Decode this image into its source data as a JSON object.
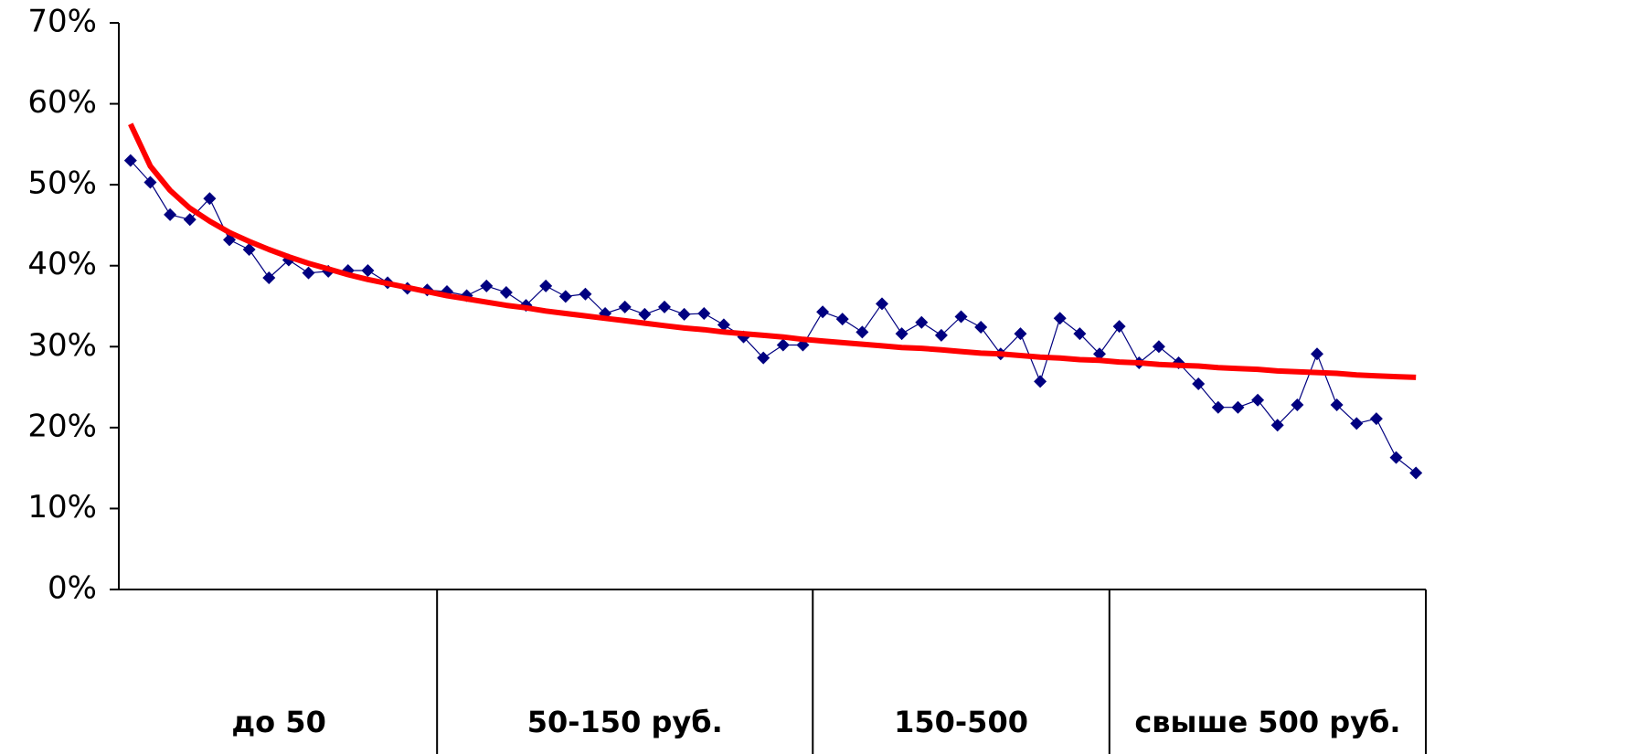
{
  "chart_data": {
    "type": "line",
    "categories": [
      null,
      null,
      null,
      null,
      null,
      null,
      null,
      null,
      null,
      null,
      null,
      null,
      null,
      null,
      null,
      null,
      null,
      null,
      null,
      null,
      null,
      null,
      null,
      null,
      null,
      null,
      null,
      null,
      null,
      null,
      null,
      null,
      null,
      null,
      null,
      null,
      null,
      null,
      null,
      null,
      null,
      null,
      null,
      null,
      null,
      null,
      null,
      null,
      null,
      null,
      null,
      null,
      null,
      null,
      null,
      null,
      null,
      null,
      null,
      null,
      null,
      null,
      null,
      null,
      null,
      null
    ],
    "category_groups": [
      {
        "label": "до 50",
        "size": 16
      },
      {
        "label": "50-150 руб.",
        "size": 19
      },
      {
        "label": "150-500",
        "size": 15
      },
      {
        "label": "свыше 500 руб.",
        "size": 16
      }
    ],
    "series": [
      {
        "color": "#000080",
        "marker": "diamond",
        "values": [
          53.0,
          50.3,
          46.3,
          45.7,
          48.3,
          43.2,
          42.0,
          38.5,
          40.7,
          39.1,
          39.3,
          39.4,
          39.4,
          37.9,
          37.2,
          37.0,
          36.8,
          36.3,
          37.5,
          36.7,
          35.1,
          37.5,
          36.2,
          36.5,
          34.1,
          34.9,
          34.0,
          34.9,
          34.0,
          34.1,
          32.7,
          31.2,
          28.6,
          30.2,
          30.2,
          34.3,
          33.4,
          31.8,
          35.3,
          31.6,
          33.0,
          31.4,
          33.7,
          32.4,
          29.1,
          31.6,
          25.7,
          33.5,
          31.6,
          29.1,
          32.5,
          28.0,
          30.0,
          28.0,
          25.4,
          22.5,
          22.5,
          23.4,
          20.3,
          22.8,
          29.1,
          22.8,
          20.5,
          21.1,
          16.3,
          14.4
        ]
      },
      {
        "color": "#ff0000",
        "marker": "none",
        "values": [
          57.5,
          52.3,
          49.3,
          47.1,
          45.5,
          44.1,
          43.0,
          42.0,
          41.1,
          40.3,
          39.6,
          38.9,
          38.3,
          37.8,
          37.3,
          36.8,
          36.3,
          35.9,
          35.5,
          35.1,
          34.8,
          34.4,
          34.1,
          33.8,
          33.5,
          33.2,
          32.9,
          32.6,
          32.3,
          32.1,
          31.8,
          31.6,
          31.4,
          31.2,
          30.9,
          30.7,
          30.5,
          30.3,
          30.1,
          29.9,
          29.8,
          29.6,
          29.4,
          29.2,
          29.1,
          28.9,
          28.7,
          28.6,
          28.4,
          28.3,
          28.1,
          28.0,
          27.8,
          27.7,
          27.6,
          27.4,
          27.3,
          27.2,
          27.0,
          26.9,
          26.8,
          26.7,
          26.5,
          26.4,
          26.3,
          26.2
        ]
      }
    ],
    "ylim": [
      0,
      70
    ],
    "yticks": [
      {
        "value": 0,
        "label": "0%"
      },
      {
        "value": 10,
        "label": "10%"
      },
      {
        "value": 20,
        "label": "20%"
      },
      {
        "value": 30,
        "label": "30%"
      },
      {
        "value": 40,
        "label": "40%"
      },
      {
        "value": 50,
        "label": "50%"
      },
      {
        "value": 60,
        "label": "60%"
      },
      {
        "value": 70,
        "label": "70%"
      }
    ],
    "grid": false
  }
}
